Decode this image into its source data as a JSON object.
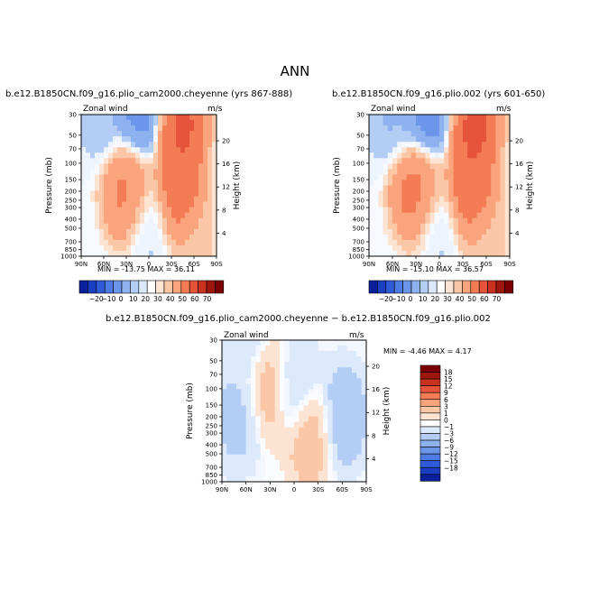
{
  "page": {
    "title": "ANN"
  },
  "colors": {
    "pos": [
      "#fde4d2",
      "#fcc7a6",
      "#f9a47c",
      "#f47c55",
      "#e4533a",
      "#c8321f",
      "#9e170f",
      "#7a0006"
    ],
    "neg": [
      "#dce9fb",
      "#b4cdf5",
      "#8eb2ef",
      "#6c96e9",
      "#4e7ae3",
      "#2f5bd8",
      "#1a3fc3",
      "#0a1f9a"
    ],
    "diffPos": [
      "#fde4d2",
      "#fcc7a6",
      "#f9a47c",
      "#f47c55",
      "#e4533a",
      "#c8321f",
      "#9e170f",
      "#7a0006"
    ],
    "diffNeg": [
      "#dce9fb",
      "#b4cdf5",
      "#8eb2ef",
      "#6c96e9",
      "#4e7ae3",
      "#2f5bd8",
      "#1a3fc3",
      "#0a1f9a"
    ]
  },
  "chart_data": [
    {
      "type": "heatmap",
      "title": "b.e12.B1850CN.f09_g16.plio_cam2000.cheyenne (yrs 867-888)",
      "corner_left": "Zonal wind",
      "corner_right": "m/s",
      "ylabel": "Pressure (mb)",
      "y2label": "Height (km)",
      "stats": "MIN = -13.75   MAX =  36.11",
      "xticks": [
        "90N",
        "60N",
        "30N",
        "0",
        "30S",
        "60S",
        "90S"
      ],
      "yticks": [
        "30",
        "50",
        "70",
        "100",
        "150",
        "200",
        "250",
        "300",
        "400",
        "500",
        "700",
        "850",
        "1000"
      ],
      "y2ticks": [
        "20",
        "16",
        "12",
        "8",
        "4"
      ],
      "min": -13.75,
      "max": 36.11,
      "field": [
        {
          "lat": 60,
          "p": 30,
          "v": -5
        },
        {
          "lat": 15,
          "p": 30,
          "v": -13.75
        },
        {
          "lat": -45,
          "p": 40,
          "v": 36.11
        },
        {
          "lat": 30,
          "p": 200,
          "v": 25
        },
        {
          "lat": -40,
          "p": 200,
          "v": 33
        },
        {
          "lat": 0,
          "p": 500,
          "v": -3
        },
        {
          "lat": -60,
          "p": 850,
          "v": 8
        }
      ]
    },
    {
      "type": "heatmap",
      "title": "b.e12.B1850CN.f09_g16.plio.002 (yrs 601-650)",
      "corner_left": "Zonal wind",
      "corner_right": "m/s",
      "ylabel": "Pressure (mb)",
      "y2label": "Height (km)",
      "stats": "MIN = -15.10   MAX =  36.57",
      "xticks": [
        "90N",
        "60N",
        "30N",
        "0",
        "30S",
        "60S",
        "90S"
      ],
      "yticks": [
        "30",
        "50",
        "70",
        "100",
        "150",
        "200",
        "250",
        "300",
        "400",
        "500",
        "700",
        "850",
        "1000"
      ],
      "y2ticks": [
        "20",
        "16",
        "12",
        "8",
        "4"
      ],
      "min": -15.1,
      "max": 36.57,
      "field": [
        {
          "lat": 60,
          "p": 30,
          "v": -6
        },
        {
          "lat": 15,
          "p": 30,
          "v": -15.1
        },
        {
          "lat": -45,
          "p": 40,
          "v": 36.57
        },
        {
          "lat": 30,
          "p": 200,
          "v": 27
        },
        {
          "lat": -40,
          "p": 200,
          "v": 34
        },
        {
          "lat": 0,
          "p": 500,
          "v": -3
        },
        {
          "lat": -60,
          "p": 850,
          "v": 8
        }
      ]
    },
    {
      "type": "heatmap",
      "title": "b.e12.B1850CN.f09_g16.plio_cam2000.cheyenne − b.e12.B1850CN.f09_g16.plio.002",
      "corner_left": "Zonal wind",
      "corner_right": "m/s",
      "ylabel": "Pressure (mb)",
      "y2label": "Height (km)",
      "stats": "MIN =  -4.46   MAX =   4.17",
      "xticks": [
        "90N",
        "60N",
        "30N",
        "0",
        "30S",
        "60S",
        "90S"
      ],
      "yticks": [
        "30",
        "50",
        "70",
        "100",
        "150",
        "200",
        "250",
        "300",
        "400",
        "500",
        "700",
        "850",
        "1000"
      ],
      "y2ticks": [
        "20",
        "16",
        "12",
        "8",
        "4"
      ],
      "min": -4.46,
      "max": 4.17,
      "field": [
        {
          "lat": 70,
          "p": 200,
          "v": -1.5
        },
        {
          "lat": 30,
          "p": 100,
          "v": 2
        },
        {
          "lat": 0,
          "p": 100,
          "v": -1.5
        },
        {
          "lat": -20,
          "p": 300,
          "v": 2
        },
        {
          "lat": -60,
          "p": 200,
          "v": -2
        },
        {
          "lat": 60,
          "p": 30,
          "v": -1
        }
      ]
    }
  ],
  "colorbar_main": {
    "labels": [
      "−20",
      "−10",
      "0",
      "10",
      "20",
      "30",
      "40",
      "50",
      "60",
      "70"
    ]
  },
  "colorbar_diff": {
    "labels": [
      "18",
      "15",
      "12",
      "9",
      "6",
      "3",
      "1",
      "0",
      "−1",
      "−3",
      "−6",
      "−9",
      "−12",
      "−15",
      "−18"
    ]
  }
}
